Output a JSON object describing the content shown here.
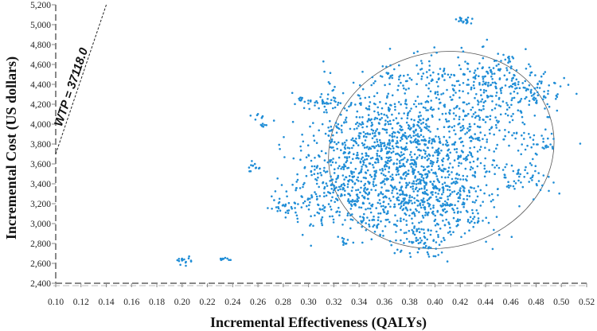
{
  "chart_data": {
    "type": "scatter",
    "title": "",
    "xlabel": "Incremental Effectiveness (QALYs)",
    "ylabel": "Incremental Cost (US dollars)",
    "xlim": [
      0.1,
      0.52
    ],
    "ylim": [
      2400,
      5200
    ],
    "x_ticks": [
      "0.10",
      "0.12",
      "0.14",
      "0.16",
      "0.18",
      "0.20",
      "0.22",
      "0.24",
      "0.26",
      "0.28",
      "0.30",
      "0.32",
      "0.34",
      "0.36",
      "0.38",
      "0.40",
      "0.42",
      "0.44",
      "0.46",
      "0.48",
      "0.50",
      "0.52"
    ],
    "y_ticks": [
      "2,400",
      "2,600",
      "2,800",
      "3,000",
      "3,200",
      "3,400",
      "3,600",
      "3,800",
      "4,000",
      "4,200",
      "4,400",
      "4,600",
      "4,800",
      "5,000",
      "5,200"
    ],
    "grid": false,
    "point_color": "#1f8dd6",
    "wtp_line": {
      "label": "WTP = 37118.0",
      "slope": 37118.0,
      "points": [
        [
          0.1,
          3700
        ],
        [
          0.14,
          5200
        ]
      ]
    },
    "confidence_ellipse": {
      "center": [
        0.405,
        3740
      ],
      "semi_axis_x": 0.09,
      "semi_axis_y": 980,
      "rotation_deg": -15
    },
    "clusters": [
      {
        "x": 0.36,
        "y": 3700,
        "sx": 0.033,
        "sy": 360,
        "n": 900
      },
      {
        "x": 0.4,
        "y": 3500,
        "sx": 0.03,
        "sy": 350,
        "n": 500
      },
      {
        "x": 0.44,
        "y": 4150,
        "sx": 0.025,
        "sy": 280,
        "n": 260
      },
      {
        "x": 0.38,
        "y": 3150,
        "sx": 0.03,
        "sy": 180,
        "n": 150
      },
      {
        "x": 0.32,
        "y": 3350,
        "sx": 0.022,
        "sy": 180,
        "n": 150
      },
      {
        "x": 0.42,
        "y": 4450,
        "sx": 0.02,
        "sy": 140,
        "n": 90
      },
      {
        "x": 0.48,
        "y": 4320,
        "sx": 0.012,
        "sy": 90,
        "n": 60
      },
      {
        "x": 0.46,
        "y": 4550,
        "sx": 0.01,
        "sy": 80,
        "n": 50
      },
      {
        "x": 0.47,
        "y": 3480,
        "sx": 0.01,
        "sy": 100,
        "n": 40
      },
      {
        "x": 0.49,
        "y": 3800,
        "sx": 0.004,
        "sy": 50,
        "n": 15
      },
      {
        "x": 0.423,
        "y": 5040,
        "sx": 0.004,
        "sy": 20,
        "n": 20
      },
      {
        "x": 0.312,
        "y": 4220,
        "sx": 0.006,
        "sy": 30,
        "n": 20
      },
      {
        "x": 0.295,
        "y": 4230,
        "sx": 0.004,
        "sy": 20,
        "n": 12
      },
      {
        "x": 0.262,
        "y": 4020,
        "sx": 0.003,
        "sy": 40,
        "n": 14
      },
      {
        "x": 0.257,
        "y": 3580,
        "sx": 0.003,
        "sy": 25,
        "n": 12
      },
      {
        "x": 0.202,
        "y": 2620,
        "sx": 0.003,
        "sy": 20,
        "n": 16
      },
      {
        "x": 0.233,
        "y": 2640,
        "sx": 0.003,
        "sy": 12,
        "n": 10
      },
      {
        "x": 0.388,
        "y": 2790,
        "sx": 0.008,
        "sy": 70,
        "n": 40
      },
      {
        "x": 0.33,
        "y": 2820,
        "sx": 0.003,
        "sy": 15,
        "n": 8
      },
      {
        "x": 0.28,
        "y": 3180,
        "sx": 0.006,
        "sy": 40,
        "n": 25
      },
      {
        "x": 0.365,
        "y": 4500,
        "sx": 0.006,
        "sy": 60,
        "n": 20
      },
      {
        "x": 0.405,
        "y": 3340,
        "sx": 0.003,
        "sy": 20,
        "n": 8
      },
      {
        "x": 0.41,
        "y": 3180,
        "sx": 0.003,
        "sy": 15,
        "n": 8
      },
      {
        "x": 0.35,
        "y": 3000,
        "sx": 0.005,
        "sy": 20,
        "n": 12
      }
    ]
  }
}
